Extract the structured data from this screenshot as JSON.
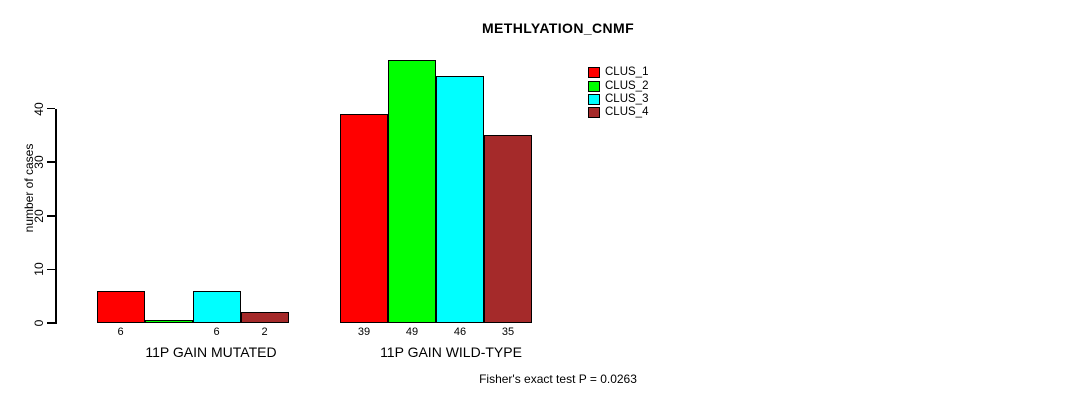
{
  "chart_data": {
    "type": "bar",
    "title": "METHLYATION_CNMF",
    "ylabel": "number of cases",
    "xlabel": "",
    "ylim": [
      0,
      40
    ],
    "y_ticks": [
      0,
      10,
      20,
      30,
      40
    ],
    "grid": false,
    "legend_position": "top-right",
    "show_zero_value_labels": false,
    "annotation": "Fisher's exact test P = 0.0263",
    "categories": [
      "11P GAIN MUTATED",
      "11P GAIN WILD-TYPE"
    ],
    "series": [
      {
        "name": "CLUS_1",
        "color": "#FF0000",
        "values": [
          6,
          39
        ]
      },
      {
        "name": "CLUS_2",
        "color": "#00FF00",
        "values": [
          0,
          49
        ]
      },
      {
        "name": "CLUS_3",
        "color": "#00FFFF",
        "values": [
          6,
          46
        ]
      },
      {
        "name": "CLUS_4",
        "color": "#A52A2A",
        "values": [
          2,
          35
        ]
      }
    ]
  },
  "colors": {
    "foreground": "#000000",
    "background": "#FFFFFF"
  }
}
